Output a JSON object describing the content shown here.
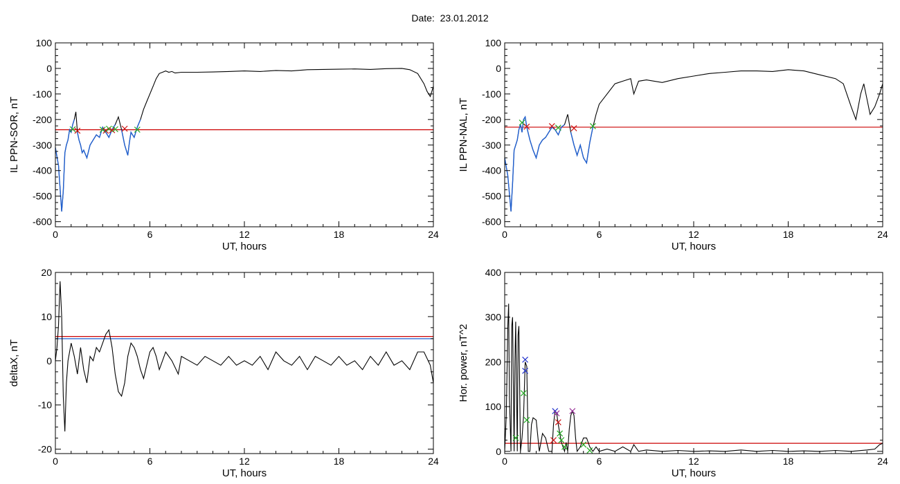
{
  "header": {
    "date_label": "Date:",
    "date_value": "23.01.2012"
  },
  "colors": {
    "trace": "#000000",
    "highlight": "#1f5fd0",
    "threshold_red": "#cc0000",
    "threshold_blue": "#1f5fd0",
    "marker_green": "#22aa22",
    "marker_red": "#cc1111",
    "marker_blue": "#2233cc",
    "marker_purple": "#993399"
  },
  "chart_data": [
    {
      "id": "sor",
      "type": "line",
      "ylabel": "IL PPN-SOR, nT",
      "xlabel": "UT, hours",
      "xlim": [
        0,
        24
      ],
      "ylim": [
        -620,
        100
      ],
      "xticks": [
        0,
        6,
        12,
        18,
        24
      ],
      "yticks": [
        100,
        0,
        -100,
        -200,
        -300,
        -400,
        -500,
        -600
      ],
      "threshold_red": -240,
      "series": [
        {
          "x": [
            0,
            0.2,
            0.4,
            0.5,
            0.6,
            0.7,
            0.8,
            0.9,
            1.0,
            1.1,
            1.2,
            1.3,
            1.4,
            1.5,
            1.6,
            1.7,
            1.8,
            2.0,
            2.2,
            2.4,
            2.6,
            2.8,
            3.0,
            3.2,
            3.4,
            3.6,
            3.8,
            4.0,
            4.2,
            4.4,
            4.6,
            4.7,
            4.8,
            5.0,
            5.2,
            5.4,
            5.6,
            5.8,
            6.0,
            6.2,
            6.4,
            6.6,
            6.8,
            7.0,
            7.2,
            7.4,
            7.6,
            8,
            9,
            10,
            11,
            12,
            13,
            14,
            15,
            16,
            17,
            18,
            19,
            20,
            21,
            22,
            22.5,
            23.0,
            23.4,
            23.6,
            23.8,
            24
          ],
          "y": [
            -310,
            -380,
            -560,
            -480,
            -330,
            -300,
            -280,
            -240,
            -250,
            -220,
            -200,
            -170,
            -250,
            -280,
            -300,
            -330,
            -320,
            -350,
            -300,
            -280,
            -260,
            -270,
            -230,
            -250,
            -270,
            -240,
            -220,
            -190,
            -240,
            -300,
            -340,
            -290,
            -250,
            -270,
            -230,
            -200,
            -160,
            -130,
            -100,
            -70,
            -40,
            -20,
            -15,
            -10,
            -15,
            -12,
            -18,
            -15,
            -15,
            -14,
            -12,
            -10,
            -12,
            -8,
            -10,
            -5,
            -4,
            -3,
            -2,
            -4,
            -1,
            0,
            -5,
            -20,
            -60,
            -90,
            -110,
            -70
          ]
        }
      ],
      "highlight_upto": 5.6,
      "markers": [
        {
          "x": 1.1,
          "y": -238,
          "color": "green"
        },
        {
          "x": 1.4,
          "y": -244,
          "color": "red"
        },
        {
          "x": 3.0,
          "y": -240,
          "color": "green"
        },
        {
          "x": 3.2,
          "y": -244,
          "color": "red"
        },
        {
          "x": 3.4,
          "y": -236,
          "color": "green"
        },
        {
          "x": 3.6,
          "y": -242,
          "color": "red"
        },
        {
          "x": 3.8,
          "y": -238,
          "color": "green"
        },
        {
          "x": 4.4,
          "y": -236,
          "color": "red"
        },
        {
          "x": 5.2,
          "y": -240,
          "color": "green"
        }
      ]
    },
    {
      "id": "nal",
      "type": "line",
      "ylabel": "IL PPN-NAL, nT",
      "xlabel": "UT, hours",
      "xlim": [
        0,
        24
      ],
      "ylim": [
        -620,
        100
      ],
      "xticks": [
        0,
        6,
        12,
        18,
        24
      ],
      "yticks": [
        100,
        0,
        -100,
        -200,
        -300,
        -400,
        -500,
        -600
      ],
      "threshold_red": -230,
      "series": [
        {
          "x": [
            0,
            0.2,
            0.4,
            0.5,
            0.6,
            0.7,
            0.8,
            0.9,
            1.0,
            1.1,
            1.2,
            1.3,
            1.4,
            1.6,
            1.8,
            2.0,
            2.2,
            2.4,
            2.6,
            2.8,
            3.0,
            3.2,
            3.4,
            3.6,
            3.8,
            4.0,
            4.2,
            4.4,
            4.6,
            4.8,
            5.0,
            5.2,
            5.4,
            5.6,
            5.8,
            6.0,
            6.5,
            7.0,
            7.5,
            8.0,
            8.2,
            8.5,
            9,
            10,
            11,
            12,
            13,
            14,
            15,
            16,
            17,
            18,
            19,
            20,
            21,
            21.5,
            22.0,
            22.3,
            22.6,
            22.8,
            23.0,
            23.2,
            23.5,
            23.8,
            24
          ],
          "y": [
            -350,
            -420,
            -560,
            -450,
            -320,
            -300,
            -280,
            -240,
            -220,
            -250,
            -200,
            -190,
            -230,
            -280,
            -320,
            -350,
            -300,
            -280,
            -270,
            -250,
            -230,
            -240,
            -260,
            -230,
            -220,
            -180,
            -250,
            -300,
            -340,
            -300,
            -350,
            -370,
            -290,
            -230,
            -180,
            -140,
            -100,
            -60,
            -50,
            -40,
            -100,
            -50,
            -45,
            -55,
            -40,
            -30,
            -20,
            -15,
            -10,
            -10,
            -12,
            -5,
            -10,
            -25,
            -40,
            -60,
            -150,
            -200,
            -100,
            -60,
            -120,
            -180,
            -150,
            -100,
            -60
          ]
        }
      ],
      "highlight_upto": 5.6,
      "markers": [
        {
          "x": 1.1,
          "y": -212,
          "color": "green"
        },
        {
          "x": 1.4,
          "y": -228,
          "color": "red"
        },
        {
          "x": 3.0,
          "y": -226,
          "color": "red"
        },
        {
          "x": 3.4,
          "y": -232,
          "color": "green"
        },
        {
          "x": 4.4,
          "y": -234,
          "color": "red"
        },
        {
          "x": 5.6,
          "y": -226,
          "color": "green"
        }
      ]
    },
    {
      "id": "deltax",
      "type": "line",
      "ylabel": "deltaX, nT",
      "xlabel": "UT, hours",
      "xlim": [
        0,
        24
      ],
      "ylim": [
        -21,
        20
      ],
      "xticks": [
        0,
        6,
        12,
        18,
        24
      ],
      "yticks": [
        20,
        10,
        0,
        -10,
        -20
      ],
      "threshold_red": 5.5,
      "threshold_blue": 5.0,
      "series": [
        {
          "x": [
            0,
            0.1,
            0.2,
            0.3,
            0.4,
            0.5,
            0.6,
            0.7,
            0.8,
            1.0,
            1.2,
            1.4,
            1.6,
            1.8,
            2.0,
            2.2,
            2.4,
            2.6,
            2.8,
            3.0,
            3.2,
            3.4,
            3.6,
            3.8,
            4.0,
            4.2,
            4.4,
            4.6,
            4.8,
            5.0,
            5.2,
            5.4,
            5.6,
            5.8,
            6.0,
            6.2,
            6.4,
            6.6,
            7.0,
            7.4,
            7.8,
            8.0,
            8.5,
            9,
            9.5,
            10,
            10.5,
            11,
            11.5,
            12,
            12.5,
            13,
            13.5,
            14,
            14.5,
            15,
            15.5,
            16,
            16.5,
            17,
            17.5,
            18,
            18.5,
            19,
            19.5,
            20,
            20.5,
            21,
            21.5,
            22,
            22.5,
            23,
            23.4,
            23.8,
            24
          ],
          "y": [
            0,
            3,
            8,
            18,
            10,
            -8,
            -16,
            -5,
            0,
            4,
            1,
            -3,
            3,
            -2,
            -5,
            1,
            0,
            3,
            2,
            4,
            6,
            7,
            3,
            -3,
            -7,
            -8,
            -5,
            1,
            4,
            3,
            1,
            -2,
            -4,
            -1,
            2,
            3,
            1,
            -2,
            2,
            0,
            -3,
            1,
            0,
            -1,
            1,
            0,
            -1,
            1,
            -1,
            0,
            -1,
            1,
            -2,
            2,
            0,
            -1,
            1,
            -2,
            1,
            0,
            -1,
            1,
            -1,
            0,
            -2,
            1,
            -1,
            2,
            -1,
            0,
            -2,
            2,
            2,
            -1,
            -5
          ]
        }
      ],
      "markers": []
    },
    {
      "id": "power",
      "type": "line",
      "ylabel": "Hor. power, nT^2",
      "xlabel": "UT, hours",
      "xlim": [
        0,
        24
      ],
      "ylim": [
        -5,
        400
      ],
      "xticks": [
        0,
        6,
        12,
        18,
        24
      ],
      "yticks": [
        400,
        300,
        200,
        100,
        0
      ],
      "threshold_red": 18,
      "series": [
        {
          "x": [
            0,
            0.1,
            0.2,
            0.25,
            0.3,
            0.4,
            0.45,
            0.5,
            0.6,
            0.65,
            0.7,
            0.8,
            0.85,
            0.9,
            1.0,
            1.1,
            1.2,
            1.3,
            1.4,
            1.5,
            1.6,
            1.7,
            1.8,
            2.0,
            2.2,
            2.4,
            2.6,
            2.8,
            3.0,
            3.1,
            3.2,
            3.3,
            3.4,
            3.5,
            3.6,
            3.7,
            3.8,
            3.9,
            4.0,
            4.1,
            4.2,
            4.3,
            4.4,
            4.5,
            4.6,
            4.8,
            5.0,
            5.2,
            5.4,
            5.6,
            5.8,
            6.0,
            6.5,
            7.0,
            7.5,
            8.0,
            8.2,
            8.5,
            9,
            10,
            11,
            12,
            13,
            14,
            15,
            16,
            17,
            18,
            19,
            20,
            21,
            22,
            23,
            23.5,
            23.8,
            24
          ],
          "y": [
            0,
            80,
            280,
            330,
            120,
            0,
            280,
            300,
            0,
            200,
            290,
            0,
            260,
            280,
            0,
            30,
            80,
            200,
            190,
            0,
            0,
            60,
            75,
            70,
            0,
            40,
            30,
            0,
            0,
            60,
            90,
            85,
            60,
            40,
            20,
            10,
            0,
            20,
            0,
            50,
            80,
            90,
            80,
            30,
            0,
            10,
            30,
            30,
            10,
            0,
            10,
            0,
            5,
            0,
            10,
            0,
            15,
            0,
            3,
            0,
            2,
            0,
            1,
            0,
            3,
            0,
            2,
            0,
            1,
            0,
            2,
            0,
            3,
            5,
            15,
            18
          ]
        }
      ],
      "markers": [
        {
          "x": 0.7,
          "y": 30,
          "color": "green"
        },
        {
          "x": 1.2,
          "y": 130,
          "color": "green"
        },
        {
          "x": 1.3,
          "y": 205,
          "color": "blue"
        },
        {
          "x": 1.3,
          "y": 180,
          "color": "blue"
        },
        {
          "x": 1.4,
          "y": 70,
          "color": "green"
        },
        {
          "x": 3.1,
          "y": 25,
          "color": "red"
        },
        {
          "x": 3.2,
          "y": 90,
          "color": "blue"
        },
        {
          "x": 3.3,
          "y": 85,
          "color": "purple"
        },
        {
          "x": 3.4,
          "y": 65,
          "color": "red"
        },
        {
          "x": 3.5,
          "y": 40,
          "color": "green"
        },
        {
          "x": 3.6,
          "y": 25,
          "color": "green"
        },
        {
          "x": 3.8,
          "y": 10,
          "color": "green"
        },
        {
          "x": 4.3,
          "y": 90,
          "color": "purple"
        },
        {
          "x": 5.0,
          "y": 15,
          "color": "green"
        },
        {
          "x": 5.4,
          "y": 2,
          "color": "green"
        }
      ]
    }
  ]
}
